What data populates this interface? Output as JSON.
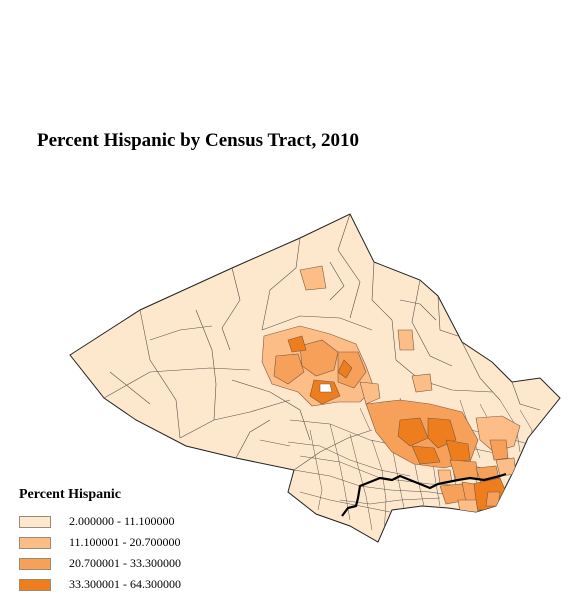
{
  "map": {
    "title": "Percent Hispanic by Census Tract, 2010",
    "legend": {
      "title": "Percent Hispanic",
      "classes": [
        {
          "label": "2.000000 - 11.100000",
          "color": "#fde8cd"
        },
        {
          "label": "11.100001 - 20.700000",
          "color": "#fcbd87"
        },
        {
          "label": "20.700001 - 33.300000",
          "color": "#f7a05a"
        },
        {
          "label": "33.300001 - 64.300000",
          "color": "#ee7d1e"
        }
      ]
    }
  }
}
